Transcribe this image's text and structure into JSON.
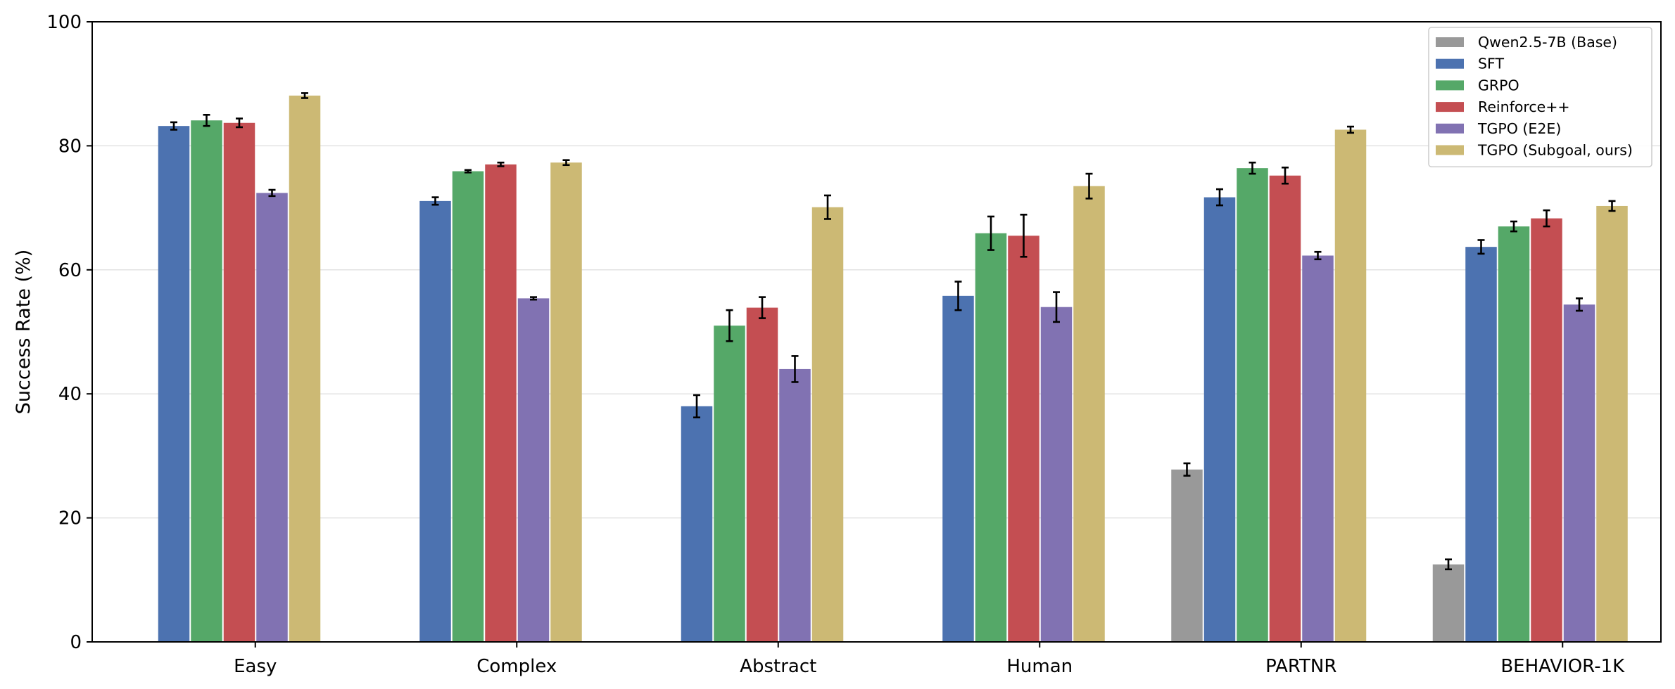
{
  "chart_data": {
    "type": "bar",
    "title": "",
    "xlabel": "",
    "ylabel": "Success Rate (%)",
    "ylim": [
      0,
      100
    ],
    "yticks": [
      0,
      20,
      40,
      60,
      80,
      100
    ],
    "grid": "horizontal",
    "legend_position": "top-right",
    "categories": [
      "Easy",
      "Complex",
      "Abstract",
      "Human",
      "PARTNR",
      "BEHAVIOR-1K"
    ],
    "series": [
      {
        "name": "Qwen2.5-7B (Base)",
        "color": "#999999",
        "values": [
          null,
          null,
          null,
          null,
          27.8,
          12.5
        ],
        "errors": [
          null,
          null,
          null,
          null,
          1.0,
          0.8
        ]
      },
      {
        "name": "SFT",
        "color": "#4c72b0",
        "values": [
          83.2,
          71.1,
          38.0,
          55.8,
          71.7,
          63.7
        ],
        "errors": [
          0.6,
          0.6,
          1.8,
          2.3,
          1.3,
          1.1
        ]
      },
      {
        "name": "GRPO",
        "color": "#55a868",
        "values": [
          84.1,
          75.9,
          51.0,
          65.9,
          76.4,
          67.0
        ],
        "errors": [
          0.9,
          0.2,
          2.5,
          2.7,
          0.9,
          0.8
        ]
      },
      {
        "name": "Reinforce++",
        "color": "#c44e52",
        "values": [
          83.7,
          77.0,
          53.9,
          65.5,
          75.2,
          68.3
        ],
        "errors": [
          0.7,
          0.3,
          1.7,
          3.4,
          1.3,
          1.3
        ]
      },
      {
        "name": "TGPO (E2E)",
        "color": "#8172b2",
        "values": [
          72.4,
          55.4,
          44.0,
          54.0,
          62.3,
          54.4
        ],
        "errors": [
          0.5,
          0.2,
          2.1,
          2.4,
          0.6,
          1.0
        ]
      },
      {
        "name": "TGPO (Subgoal, ours)",
        "color": "#ccb974",
        "values": [
          88.1,
          77.3,
          70.1,
          73.5,
          82.6,
          70.3
        ],
        "errors": [
          0.4,
          0.4,
          1.9,
          2.0,
          0.5,
          0.8
        ]
      }
    ]
  }
}
